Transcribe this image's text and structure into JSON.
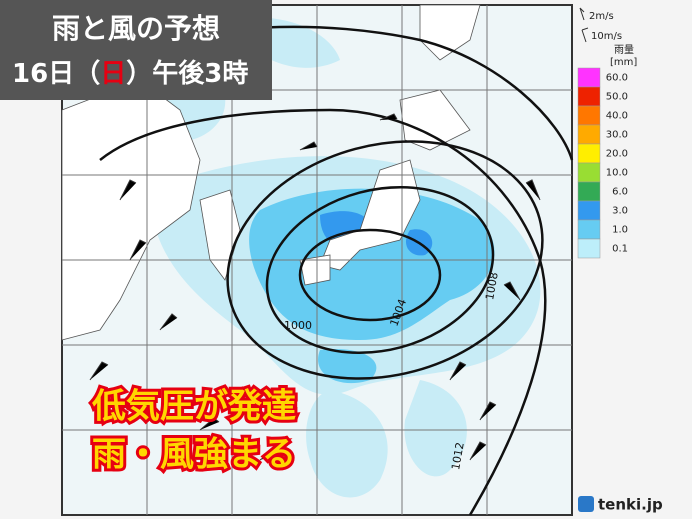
{
  "header": {
    "title": "雨と風の予想",
    "date": {
      "day": "16日",
      "open": "（",
      "weekday": "日",
      "close": "）",
      "time": "午後3時"
    }
  },
  "wind_legend": {
    "short": "2m/s",
    "long": "10m/s"
  },
  "rain_legend": {
    "title": "雨量",
    "unit": "[mm]",
    "items": [
      {
        "label": "60.0",
        "color": "#ff33ff"
      },
      {
        "label": "50.0",
        "color": "#ee2200"
      },
      {
        "label": "40.0",
        "color": "#ff7700"
      },
      {
        "label": "30.0",
        "color": "#ffaa00"
      },
      {
        "label": "20.0",
        "color": "#ffee00"
      },
      {
        "label": "10.0",
        "color": "#99dd33"
      },
      {
        "label": "6.0",
        "color": "#33aa55"
      },
      {
        "label": "3.0",
        "color": "#3399ee"
      },
      {
        "label": "1.0",
        "color": "#66ccf2"
      },
      {
        "label": "0.1",
        "color": "#bdeefa"
      }
    ]
  },
  "isobars": [
    "1000",
    "1004",
    "1008",
    "1012"
  ],
  "annotation": {
    "line1": "低気圧が発達",
    "line2": "雨・風強まる"
  },
  "logo": "tenki.jp"
}
